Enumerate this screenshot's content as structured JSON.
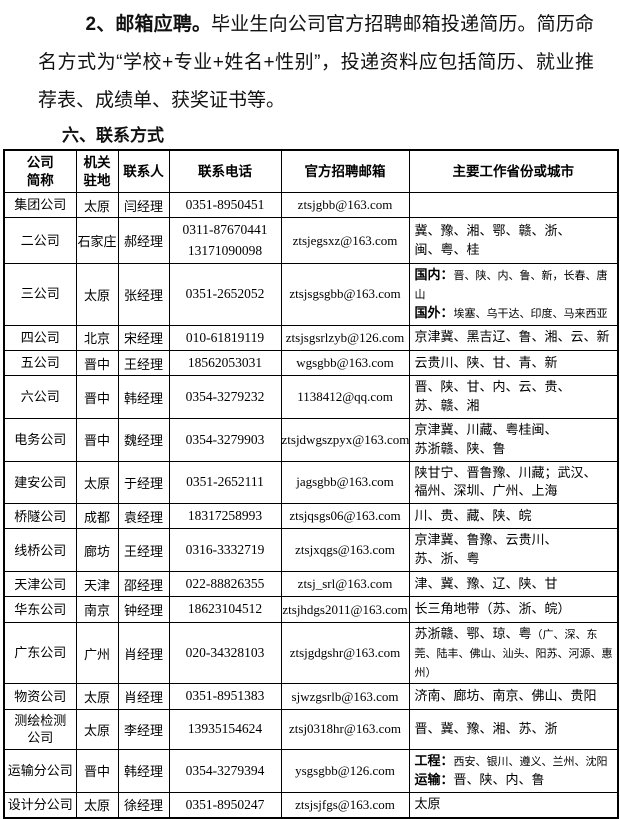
{
  "page": {
    "intro_bold": "2、邮箱应聘。",
    "intro_text": "毕业生向公司官方招聘邮箱投递简历。简历命名方式为“学校+专业+姓名+性别”，投递资料应包括简历、就业推荐表、成绩单、获奖证书等。",
    "section_title": "六、联系方式"
  },
  "table": {
    "headers": [
      "公司\n简称",
      "机关\n驻地",
      "联系人",
      "联系电话",
      "官方招聘邮箱",
      "主要工作省份或城市"
    ],
    "rows": [
      {
        "company": "集团公司",
        "location": "太原",
        "contact": "闫经理",
        "phone": "0351-8950451",
        "email": "ztsjgbb@163.com",
        "regions": []
      },
      {
        "company": "二公司",
        "location": "石家庄",
        "contact": "郝经理",
        "phone": "0311-87670441\n13171090098",
        "email": "ztsjegsxz@163.com",
        "regions": [
          {
            "s": "normal",
            "t": "冀、豫、湘、鄂、赣、浙、"
          },
          {
            "s": "br"
          },
          {
            "s": "normal",
            "t": "闽、粤、桂"
          }
        ]
      },
      {
        "company": "三公司",
        "location": "太原",
        "contact": "张经理",
        "phone": "0351-2652052",
        "email": "ztsjsgsgbb@163.com",
        "regions": [
          {
            "s": "bold",
            "t": "国内："
          },
          {
            "s": "small",
            "t": "晋、陕、内、鲁、新，长春、唐山"
          },
          {
            "s": "br"
          },
          {
            "s": "bold",
            "t": "国外："
          },
          {
            "s": "small",
            "t": "埃塞、乌干达、印度、马来西亚"
          }
        ]
      },
      {
        "company": "四公司",
        "location": "北京",
        "contact": "宋经理",
        "phone": "010-61819119",
        "email": "ztsjsgsrlzyb@126.com",
        "regions": [
          {
            "s": "normal",
            "t": "京津冀、黑吉辽、鲁、湘、云、新"
          }
        ]
      },
      {
        "company": "五公司",
        "location": "晋中",
        "contact": "王经理",
        "phone": "18562053031",
        "email": "wgsgbb@163.com",
        "regions": [
          {
            "s": "normal",
            "t": "云贵川、陕、甘、青、新"
          }
        ]
      },
      {
        "company": "六公司",
        "location": "晋中",
        "contact": "韩经理",
        "phone": "0354-3279232",
        "email": "1138412@qq.com",
        "regions": [
          {
            "s": "normal",
            "t": "晋、陕、甘、内、云、贵、"
          },
          {
            "s": "br"
          },
          {
            "s": "normal",
            "t": "苏、赣、湘"
          }
        ]
      },
      {
        "company": "电务公司",
        "location": "晋中",
        "contact": "魏经理",
        "phone": "0354-3279903",
        "email": "ztsjdwgszpyx@163.com",
        "regions": [
          {
            "s": "normal",
            "t": "京津冀、川藏、粤桂闽、"
          },
          {
            "s": "br"
          },
          {
            "s": "normal",
            "t": "苏浙赣、陕、鲁"
          }
        ]
      },
      {
        "company": "建安公司",
        "location": "太原",
        "contact": "于经理",
        "phone": "0351-2652111",
        "email": "jagsgbb@163.com",
        "regions": [
          {
            "s": "normal",
            "t": "陕甘宁、晋鲁豫、川藏；武汉、"
          },
          {
            "s": "br"
          },
          {
            "s": "normal",
            "t": "福州、深圳、广州、上海"
          }
        ]
      },
      {
        "company": "桥隧公司",
        "location": "成都",
        "contact": "袁经理",
        "phone": "18317258993",
        "email": "ztsjqsgs06@163.com",
        "regions": [
          {
            "s": "normal",
            "t": "川、贵、藏、陕、皖"
          }
        ]
      },
      {
        "company": "线桥公司",
        "location": "廊坊",
        "contact": "王经理",
        "phone": "0316-3332719",
        "email": "ztsjxqgs@163.com",
        "regions": [
          {
            "s": "normal",
            "t": "京津冀、鲁豫、云贵川、"
          },
          {
            "s": "br"
          },
          {
            "s": "normal",
            "t": "苏、浙、粤"
          }
        ]
      },
      {
        "company": "天津公司",
        "location": "天津",
        "contact": "邵经理",
        "phone": "022-88826355",
        "email": "ztsj_srl@163.com",
        "regions": [
          {
            "s": "normal",
            "t": "津、冀、豫、辽、陕、甘"
          }
        ]
      },
      {
        "company": "华东公司",
        "location": "南京",
        "contact": "钟经理",
        "phone": "18623104512",
        "email": "ztsjhdgs2011@163.com",
        "regions": [
          {
            "s": "normal",
            "t": "长三角地带（苏、浙、皖）"
          }
        ]
      },
      {
        "company": "广东公司",
        "location": "广州",
        "contact": "肖经理",
        "phone": "020-34328103",
        "email": "ztsjgdgshr@163.com",
        "regions": [
          {
            "s": "normal",
            "t": "苏浙赣、鄂、琼、粤"
          },
          {
            "s": "small",
            "t": "（广、深、东莞、陆丰、佛山、汕头、阳苏、河源、惠州）"
          }
        ]
      },
      {
        "company": "物资公司",
        "location": "太原",
        "contact": "肖经理",
        "phone": "0351-8951383",
        "email": "sjwzgsrlb@163.com",
        "regions": [
          {
            "s": "normal",
            "t": "济南、廊坊、南京、佛山、贵阳"
          }
        ]
      },
      {
        "company": "测绘检测\n公司",
        "location": "太原",
        "contact": "李经理",
        "phone": "13935154624",
        "email": "ztsj0318hr@163.com",
        "regions": [
          {
            "s": "normal",
            "t": "晋、冀、豫、湘、苏、浙"
          }
        ]
      },
      {
        "company": "运输分公司",
        "location": "晋中",
        "contact": "韩经理",
        "phone": "0354-3279394",
        "email": "ysgsgbb@126.com",
        "regions": [
          {
            "s": "bold",
            "t": "工程："
          },
          {
            "s": "small",
            "t": "西安、银川、遵义、兰州、沈阳"
          },
          {
            "s": "br"
          },
          {
            "s": "bold",
            "t": "运输："
          },
          {
            "s": "normal",
            "t": "晋、陕、内、鲁"
          }
        ]
      },
      {
        "company": "设计分公司",
        "location": "太原",
        "contact": "徐经理",
        "phone": "0351-8950247",
        "email": "ztsjsjfgs@163.com",
        "regions": [
          {
            "s": "normal",
            "t": "太原"
          }
        ]
      }
    ]
  }
}
